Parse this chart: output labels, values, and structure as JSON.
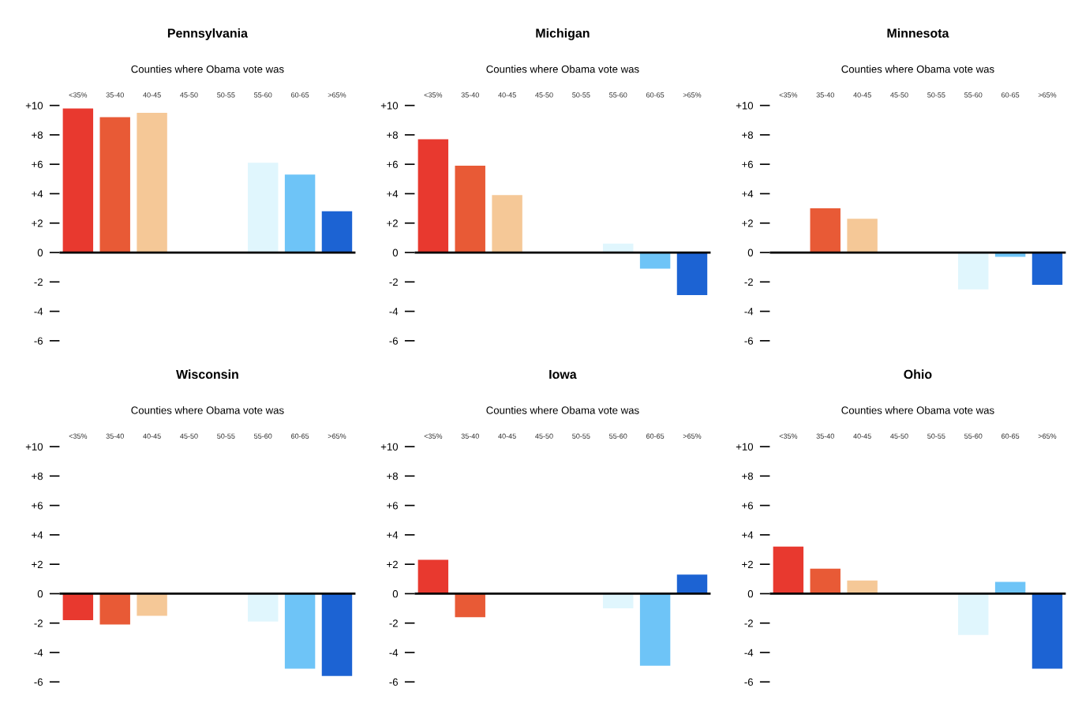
{
  "chart_data": [
    {
      "type": "bar",
      "title": "Pennsylvania",
      "subtitle": "Counties where Obama vote was",
      "categories": [
        "<35%",
        "35-40",
        "40-45",
        "45-50",
        "50-55",
        "55-60",
        "60-65",
        ">65%"
      ],
      "values": [
        9.8,
        9.2,
        9.5,
        0,
        0,
        6.1,
        5.3,
        2.8
      ],
      "colors": [
        "#e8392f",
        "#e85a36",
        "#f5c897",
        "#f4e6d6",
        "#eef4f8",
        "#e0f6fd",
        "#6ec4f7",
        "#1c63d3"
      ],
      "ylim": [
        -6,
        10
      ],
      "yticks": [
        {
          "value": 10,
          "label": "+10"
        },
        {
          "value": 8,
          "label": "+8"
        },
        {
          "value": 6,
          "label": "+6"
        },
        {
          "value": 4,
          "label": "+4"
        },
        {
          "value": 2,
          "label": "+2"
        },
        0,
        -2,
        -4,
        -6
      ],
      "ref_lines": [
        {
          "axis": "y",
          "value": 0,
          "color": "#000000"
        }
      ]
    },
    {
      "type": "bar",
      "title": "Michigan",
      "subtitle": "Counties where Obama vote was",
      "categories": [
        "<35%",
        "35-40",
        "40-45",
        "45-50",
        "50-55",
        "55-60",
        "60-65",
        ">65%"
      ],
      "values": [
        7.7,
        5.9,
        3.9,
        0,
        0,
        0.6,
        -1.1,
        -2.9
      ],
      "colors": [
        "#e8392f",
        "#e85a36",
        "#f5c897",
        "#f4e6d6",
        "#eef4f8",
        "#e0f6fd",
        "#6ec4f7",
        "#1c63d3"
      ],
      "ylim": [
        -6,
        10
      ],
      "yticks": [
        {
          "value": 10,
          "label": "+10"
        },
        {
          "value": 8,
          "label": "+8"
        },
        {
          "value": 6,
          "label": "+6"
        },
        {
          "value": 4,
          "label": "+4"
        },
        {
          "value": 2,
          "label": "+2"
        },
        0,
        -2,
        -4,
        -6
      ],
      "ref_lines": [
        {
          "axis": "y",
          "value": 0,
          "color": "#000000"
        }
      ]
    },
    {
      "type": "bar",
      "title": "Minnesota",
      "subtitle": "Counties where Obama vote was",
      "categories": [
        "<35%",
        "35-40",
        "40-45",
        "45-50",
        "50-55",
        "55-60",
        "60-65",
        ">65%"
      ],
      "values": [
        0,
        3.0,
        2.3,
        0,
        0,
        -2.5,
        -0.3,
        -2.2
      ],
      "colors": [
        "#e8392f",
        "#e85a36",
        "#f5c897",
        "#f4e6d6",
        "#eef4f8",
        "#e0f6fd",
        "#6ec4f7",
        "#1c63d3"
      ],
      "ylim": [
        -6,
        10
      ],
      "yticks": [
        {
          "value": 10,
          "label": "+10"
        },
        {
          "value": 8,
          "label": "+8"
        },
        {
          "value": 6,
          "label": "+6"
        },
        {
          "value": 4,
          "label": "+4"
        },
        {
          "value": 2,
          "label": "+2"
        },
        0,
        -2,
        -4,
        -6
      ],
      "ref_lines": [
        {
          "axis": "y",
          "value": 0,
          "color": "#000000"
        }
      ]
    },
    {
      "type": "bar",
      "title": "Wisconsin",
      "subtitle": "Counties where Obama vote was",
      "categories": [
        "<35%",
        "35-40",
        "40-45",
        "45-50",
        "50-55",
        "55-60",
        "60-65",
        ">65%"
      ],
      "values": [
        -1.8,
        -2.1,
        -1.5,
        0,
        0,
        -1.9,
        -5.1,
        -5.6
      ],
      "colors": [
        "#e8392f",
        "#e85a36",
        "#f5c897",
        "#f4e6d6",
        "#eef4f8",
        "#e0f6fd",
        "#6ec4f7",
        "#1c63d3"
      ],
      "ylim": [
        -6,
        10
      ],
      "yticks": [
        {
          "value": 10,
          "label": "+10"
        },
        {
          "value": 8,
          "label": "+8"
        },
        {
          "value": 6,
          "label": "+6"
        },
        {
          "value": 4,
          "label": "+4"
        },
        {
          "value": 2,
          "label": "+2"
        },
        0,
        -2,
        -4,
        -6
      ],
      "ref_lines": [
        {
          "axis": "y",
          "value": 0,
          "color": "#000000"
        }
      ]
    },
    {
      "type": "bar",
      "title": "Iowa",
      "subtitle": "Counties where Obama vote was",
      "categories": [
        "<35%",
        "35-40",
        "40-45",
        "45-50",
        "50-55",
        "55-60",
        "60-65",
        ">65%"
      ],
      "values": [
        2.3,
        -1.6,
        0,
        0,
        0,
        -1.0,
        -4.9,
        1.3
      ],
      "colors": [
        "#e8392f",
        "#e85a36",
        "#f5c897",
        "#f4e6d6",
        "#eef4f8",
        "#e0f6fd",
        "#6ec4f7",
        "#1c63d3"
      ],
      "ylim": [
        -6,
        10
      ],
      "yticks": [
        {
          "value": 10,
          "label": "+10"
        },
        {
          "value": 8,
          "label": "+8"
        },
        {
          "value": 6,
          "label": "+6"
        },
        {
          "value": 4,
          "label": "+4"
        },
        {
          "value": 2,
          "label": "+2"
        },
        0,
        -2,
        -4,
        -6
      ],
      "ref_lines": [
        {
          "axis": "y",
          "value": 0,
          "color": "#000000"
        }
      ]
    },
    {
      "type": "bar",
      "title": "Ohio",
      "subtitle": "Counties where Obama vote was",
      "categories": [
        "<35%",
        "35-40",
        "40-45",
        "45-50",
        "50-55",
        "55-60",
        "60-65",
        ">65%"
      ],
      "values": [
        3.2,
        1.7,
        0.9,
        0,
        0,
        -2.8,
        0.8,
        -5.1
      ],
      "colors": [
        "#e8392f",
        "#e85a36",
        "#f5c897",
        "#f4e6d6",
        "#eef4f8",
        "#e0f6fd",
        "#6ec4f7",
        "#1c63d3"
      ],
      "ylim": [
        -6,
        10
      ],
      "yticks": [
        {
          "value": 10,
          "label": "+10"
        },
        {
          "value": 8,
          "label": "+8"
        },
        {
          "value": 6,
          "label": "+6"
        },
        {
          "value": 4,
          "label": "+4"
        },
        {
          "value": 2,
          "label": "+2"
        },
        0,
        -2,
        -4,
        -6
      ],
      "ref_lines": [
        {
          "axis": "y",
          "value": 0,
          "color": "#000000"
        }
      ]
    }
  ]
}
